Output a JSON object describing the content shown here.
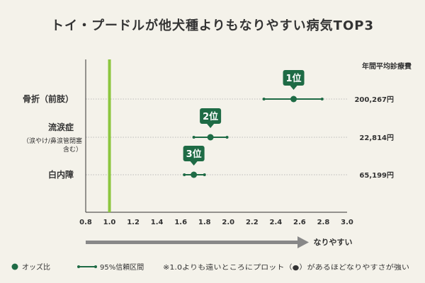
{
  "title": "トイ・プードルが他犬種よりもなりやすい病気TOP3",
  "colors": {
    "series": "#1e6b45",
    "reference": "#8cc63f",
    "grid": "#aaaaaa",
    "arrow": "#888888",
    "text": "#333333",
    "background": "#f4f2ea"
  },
  "chart_data": {
    "type": "scatter",
    "title": "トイ・プードルが他犬種よりもなりやすい病気TOP3",
    "xlabel": "なりやすい",
    "xlim": [
      0.8,
      3.0
    ],
    "x_ticks": [
      "0.8",
      "1.0",
      "1.2",
      "1.4",
      "1.6",
      "1.8",
      "2.0",
      "2.2",
      "2.4",
      "2.6",
      "2.8",
      "3.0"
    ],
    "reference_line": 1.0,
    "cost_header": "年間平均診療費",
    "rows": [
      {
        "label": "骨折（前肢）",
        "sublabel_lines": [],
        "odds": 2.55,
        "ci_low": 2.3,
        "ci_high": 2.79,
        "rank": "1位",
        "cost": "200,267円"
      },
      {
        "label": "流涙症",
        "sublabel_lines": [
          "（涙やけ/鼻涙管閉塞",
          "含む）"
        ],
        "odds": 1.85,
        "ci_low": 1.71,
        "ci_high": 1.99,
        "rank": "2位",
        "cost": "22,814円"
      },
      {
        "label": "白内障",
        "sublabel_lines": [],
        "odds": 1.71,
        "ci_low": 1.63,
        "ci_high": 1.8,
        "rank": "3位",
        "cost": "65,199円"
      }
    ],
    "legend": {
      "point_label": "オッズ比",
      "ci_label": "95%信頼区間",
      "note": "※1.0よりも遠いところにプロット（●）があるほどなりやすさが強い"
    }
  }
}
